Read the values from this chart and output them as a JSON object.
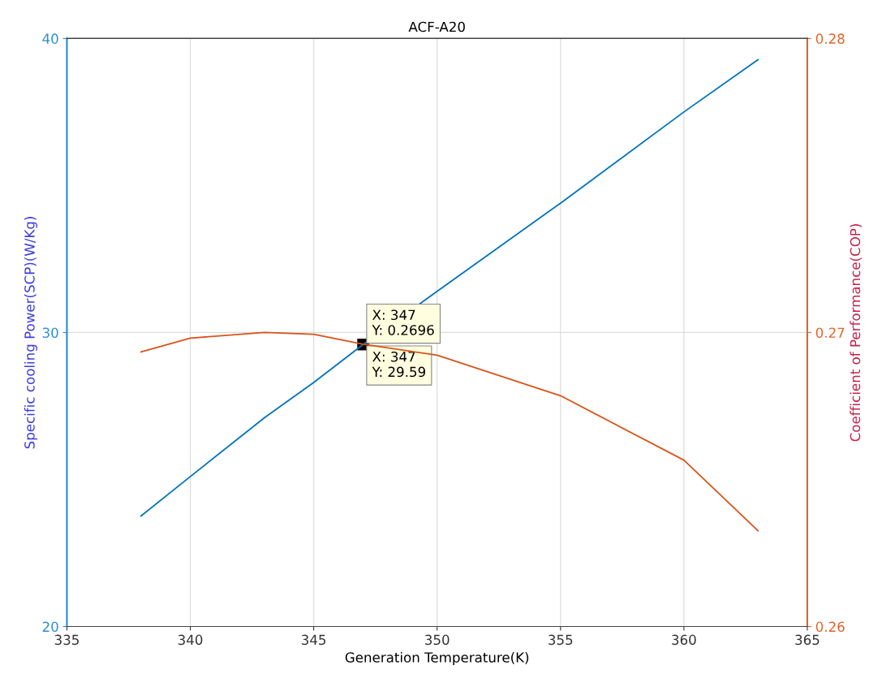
{
  "chart_data": {
    "type": "line",
    "title": "ACF-A20",
    "xlabel": "Generation Temperature(K)",
    "ylabel": "Specific cooling Power(SCP)(W/Kg)",
    "y2label": "Coefficient of Performance(COP)",
    "x": [
      338,
      340,
      343,
      345,
      347,
      350,
      355,
      360,
      363
    ],
    "series": [
      {
        "color": "#0072bd",
        "values": [
          23.76,
          25.1,
          27.1,
          28.3,
          29.59,
          31.4,
          34.4,
          37.5,
          39.28
        ]
      },
      {
        "color": "#d95319",
        "axis": "y2",
        "values": [
          0.26934,
          0.26981,
          0.27,
          0.26994,
          0.2696,
          0.26923,
          0.26785,
          0.26566,
          0.26326
        ]
      }
    ],
    "xlim": [
      335,
      365
    ],
    "xticks": [
      335,
      340,
      345,
      350,
      355,
      360,
      365
    ],
    "ylim": [
      20,
      40
    ],
    "yticks": [
      20,
      30,
      40
    ],
    "y2lim": [
      0.26,
      0.28
    ],
    "y2ticks": [
      0.26,
      0.27,
      0.28
    ],
    "grid": true,
    "annotations": [
      {
        "text": "X: 347\nY: 0.2696",
        "x": 347,
        "y": 29.59
      },
      {
        "text": "X: 347\nY: 29.59",
        "x": 347,
        "y": 29.59
      }
    ]
  }
}
